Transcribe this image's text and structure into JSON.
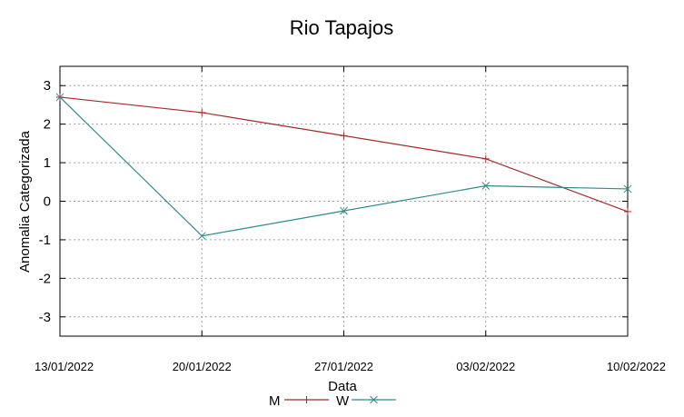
{
  "chart_data": {
    "type": "line",
    "title": "Rio Tapajos",
    "xlabel": "Data",
    "ylabel": "Anomalia Categorizada",
    "categories": [
      "13/01/2022",
      "20/01/2022",
      "27/01/2022",
      "03/02/2022",
      "10/02/2022"
    ],
    "ylim": [
      -3.5,
      3.5
    ],
    "yticks": [
      3,
      2,
      1,
      0,
      -1,
      -2,
      -3
    ],
    "grid": true,
    "legend_position": "bottom-center",
    "series": [
      {
        "name": "M",
        "values": [
          2.7,
          2.3,
          1.7,
          1.1,
          -0.27
        ],
        "color": "#a52a2a",
        "marker": "plus"
      },
      {
        "name": "W",
        "values": [
          2.7,
          -0.9,
          -0.25,
          0.4,
          0.32
        ],
        "color": "#2e8b8b",
        "marker": "cross"
      }
    ]
  }
}
